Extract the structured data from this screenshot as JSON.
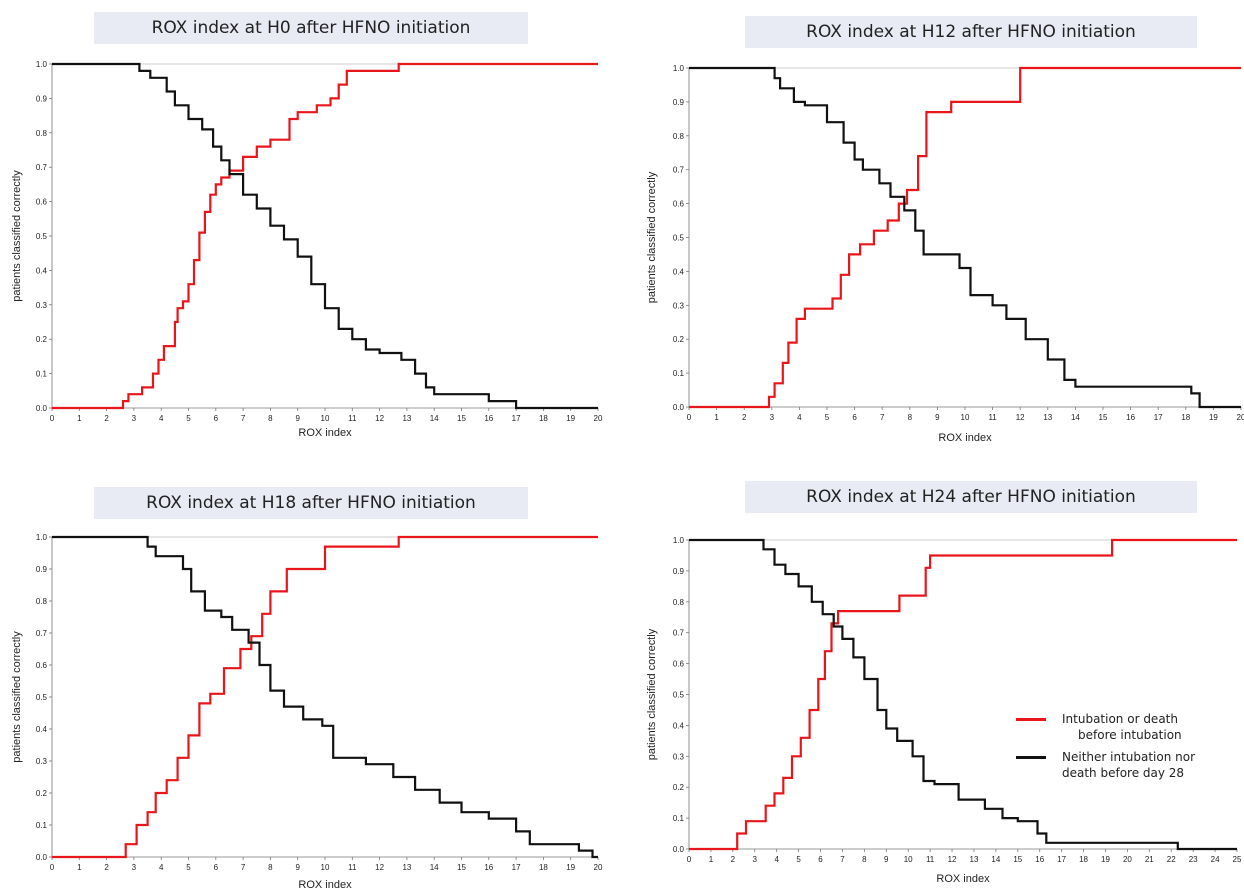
{
  "colors": {
    "intubation": "#e8161b",
    "neither": "#111111",
    "title_bg": "#e9ebf4",
    "axis": "#777777"
  },
  "legend": {
    "intubation_line1": "Intubation or death",
    "intubation_line2": "before intubation",
    "neither_line1": "Neither intubation nor",
    "neither_line2": "death before day 28"
  },
  "chart_data": [
    {
      "type": "line",
      "title": "ROX index at H0 after HFNO initiation",
      "xlabel": "ROX index",
      "ylabel": "patients classified correctly",
      "xlim": [
        0,
        20
      ],
      "ylim": [
        0,
        1
      ],
      "x_ticks": [
        "0",
        "1",
        "2",
        "3",
        "4",
        "5",
        "6",
        "7",
        "8",
        "9",
        "10",
        "11",
        "12",
        "13",
        "14",
        "15",
        "16",
        "17",
        "18",
        "19",
        "20"
      ],
      "y_ticks": [
        "0.0",
        "0.1",
        "0.2",
        "0.3",
        "0.4",
        "0.5",
        "0.6",
        "0.7",
        "0.8",
        "0.9",
        "1.0"
      ],
      "series": [
        {
          "name": "Intubation or death before intubation",
          "color_key": "intubation",
          "x": [
            0,
            2.6,
            2.8,
            3.3,
            3.7,
            3.9,
            4.1,
            4.5,
            4.6,
            4.8,
            5.0,
            5.2,
            5.4,
            5.6,
            5.8,
            6.0,
            6.2,
            6.5,
            7.0,
            7.5,
            8.0,
            8.7,
            9.0,
            9.7,
            10.2,
            10.5,
            10.8,
            12.0,
            12.7,
            20
          ],
          "y": [
            0,
            0.02,
            0.04,
            0.06,
            0.1,
            0.14,
            0.18,
            0.25,
            0.29,
            0.31,
            0.36,
            0.43,
            0.51,
            0.57,
            0.62,
            0.65,
            0.67,
            0.69,
            0.73,
            0.76,
            0.78,
            0.84,
            0.86,
            0.88,
            0.9,
            0.94,
            0.98,
            0.98,
            1.0,
            1.0
          ]
        },
        {
          "name": "Neither intubation nor death before day 28",
          "color_key": "neither",
          "x": [
            0,
            3.2,
            3.6,
            4.2,
            4.5,
            5.0,
            5.5,
            5.9,
            6.2,
            6.5,
            7.0,
            7.5,
            8.0,
            8.5,
            9.0,
            9.5,
            10.0,
            10.5,
            11.0,
            11.5,
            12.0,
            12.8,
            13.3,
            13.7,
            14.0,
            16.0,
            17.0,
            20
          ],
          "y": [
            1.0,
            0.98,
            0.96,
            0.92,
            0.88,
            0.84,
            0.81,
            0.76,
            0.72,
            0.68,
            0.62,
            0.58,
            0.53,
            0.49,
            0.44,
            0.36,
            0.29,
            0.23,
            0.2,
            0.17,
            0.16,
            0.14,
            0.1,
            0.06,
            0.04,
            0.02,
            0.0,
            0.0
          ]
        }
      ]
    },
    {
      "type": "line",
      "title": "ROX index at H12 after HFNO initiation",
      "xlabel": "ROX index",
      "ylabel": "patients classified correctly",
      "xlim": [
        0,
        20
      ],
      "ylim": [
        0,
        1
      ],
      "x_ticks": [
        "0",
        "1",
        "2",
        "3",
        "4",
        "5",
        "6",
        "7",
        "8",
        "9",
        "10",
        "11",
        "12",
        "13",
        "14",
        "15",
        "16",
        "17",
        "18",
        "19",
        "20"
      ],
      "y_ticks": [
        "0.0",
        "0.1",
        "0.2",
        "0.3",
        "0.4",
        "0.5",
        "0.6",
        "0.7",
        "0.8",
        "0.9",
        "1.0"
      ],
      "series": [
        {
          "name": "Intubation or death before intubation",
          "color_key": "intubation",
          "x": [
            0,
            2.9,
            3.1,
            3.4,
            3.6,
            3.9,
            4.2,
            5.2,
            5.5,
            5.8,
            6.2,
            6.7,
            7.2,
            7.6,
            7.9,
            8.3,
            8.6,
            9.5,
            11.8,
            12.0,
            20
          ],
          "y": [
            0,
            0.03,
            0.07,
            0.13,
            0.19,
            0.26,
            0.29,
            0.32,
            0.39,
            0.45,
            0.48,
            0.52,
            0.55,
            0.6,
            0.64,
            0.74,
            0.87,
            0.9,
            0.9,
            1.0,
            1.0
          ]
        },
        {
          "name": "Neither intubation nor death before day 28",
          "color_key": "neither",
          "x": [
            0,
            3.1,
            3.3,
            3.8,
            4.2,
            5.0,
            5.6,
            6.0,
            6.3,
            6.9,
            7.3,
            7.8,
            8.2,
            8.5,
            9.2,
            9.8,
            10.2,
            11.0,
            11.5,
            12.2,
            13.0,
            13.6,
            14.0,
            16.5,
            18.2,
            18.5,
            20
          ],
          "y": [
            1.0,
            0.97,
            0.94,
            0.9,
            0.89,
            0.84,
            0.78,
            0.73,
            0.7,
            0.66,
            0.62,
            0.58,
            0.52,
            0.45,
            0.45,
            0.41,
            0.33,
            0.3,
            0.26,
            0.2,
            0.14,
            0.08,
            0.06,
            0.06,
            0.04,
            0.0,
            0.0
          ]
        }
      ]
    },
    {
      "type": "line",
      "title": "ROX index at H18 after HFNO initiation",
      "xlabel": "ROX index",
      "ylabel": "patients classified correctly",
      "xlim": [
        0,
        20
      ],
      "ylim": [
        0,
        1
      ],
      "x_ticks": [
        "0",
        "1",
        "2",
        "3",
        "4",
        "5",
        "6",
        "7",
        "8",
        "9",
        "10",
        "11",
        "12",
        "13",
        "14",
        "15",
        "16",
        "17",
        "18",
        "19",
        "20"
      ],
      "y_ticks": [
        "0.0",
        "0.1",
        "0.2",
        "0.3",
        "0.4",
        "0.5",
        "0.6",
        "0.7",
        "0.8",
        "0.9",
        "1.0"
      ],
      "series": [
        {
          "name": "Intubation or death before intubation",
          "color_key": "intubation",
          "x": [
            0,
            2.7,
            3.1,
            3.5,
            3.8,
            4.2,
            4.6,
            5.0,
            5.4,
            5.8,
            6.3,
            6.9,
            7.3,
            7.7,
            8.0,
            8.6,
            9.0,
            10.0,
            12.7,
            20
          ],
          "y": [
            0,
            0.04,
            0.1,
            0.14,
            0.2,
            0.24,
            0.31,
            0.38,
            0.48,
            0.51,
            0.59,
            0.65,
            0.69,
            0.76,
            0.83,
            0.9,
            0.9,
            0.97,
            1.0,
            1.0
          ]
        },
        {
          "name": "Neither intubation nor death before day 28",
          "color_key": "neither",
          "x": [
            0,
            3.5,
            3.8,
            4.8,
            5.1,
            5.6,
            6.2,
            6.6,
            7.2,
            7.6,
            8.0,
            8.5,
            9.2,
            9.9,
            10.3,
            11.5,
            12.5,
            13.3,
            14.2,
            15.0,
            16.0,
            17.0,
            17.5,
            19.3,
            19.8,
            20
          ],
          "y": [
            1.0,
            0.97,
            0.94,
            0.9,
            0.83,
            0.77,
            0.75,
            0.71,
            0.67,
            0.6,
            0.52,
            0.47,
            0.43,
            0.41,
            0.31,
            0.29,
            0.25,
            0.21,
            0.17,
            0.14,
            0.12,
            0.08,
            0.04,
            0.02,
            0.0,
            0.0
          ]
        }
      ]
    },
    {
      "type": "line",
      "title": "ROX index at H24 after HFNO initiation",
      "xlabel": "ROX index",
      "ylabel": "patients classified correctly",
      "xlim": [
        0,
        25
      ],
      "ylim": [
        0,
        1
      ],
      "x_ticks": [
        "0",
        "1",
        "2",
        "3",
        "4",
        "5",
        "6",
        "7",
        "8",
        "9",
        "10",
        "11",
        "12",
        "13",
        "14",
        "15",
        "16",
        "17",
        "18",
        "19",
        "20",
        "21",
        "22",
        "23",
        "24",
        "25"
      ],
      "y_ticks": [
        "0.0",
        "0.1",
        "0.2",
        "0.3",
        "0.4",
        "0.5",
        "0.6",
        "0.7",
        "0.8",
        "0.9",
        "1.0"
      ],
      "series": [
        {
          "name": "Intubation or death before intubation",
          "color_key": "intubation",
          "x": [
            0,
            2.2,
            2.6,
            3.5,
            3.9,
            4.3,
            4.7,
            5.1,
            5.5,
            5.9,
            6.2,
            6.5,
            6.8,
            7.0,
            9.6,
            10.8,
            11.0,
            19.3,
            25
          ],
          "y": [
            0,
            0.05,
            0.09,
            0.14,
            0.18,
            0.23,
            0.3,
            0.36,
            0.45,
            0.55,
            0.64,
            0.73,
            0.77,
            0.77,
            0.82,
            0.91,
            0.95,
            1.0,
            1.0
          ]
        },
        {
          "name": "Neither intubation nor death before day 28",
          "color_key": "neither",
          "x": [
            0,
            3.4,
            3.9,
            4.4,
            5.0,
            5.6,
            6.1,
            6.6,
            7.0,
            7.5,
            8.0,
            8.6,
            9.0,
            9.5,
            10.2,
            10.7,
            11.2,
            12.3,
            13.5,
            14.3,
            15.0,
            15.9,
            16.3,
            22.3,
            25
          ],
          "y": [
            1.0,
            0.97,
            0.92,
            0.89,
            0.85,
            0.8,
            0.76,
            0.72,
            0.68,
            0.62,
            0.55,
            0.45,
            0.39,
            0.35,
            0.3,
            0.22,
            0.21,
            0.16,
            0.13,
            0.1,
            0.09,
            0.05,
            0.02,
            0.0,
            0.0
          ]
        }
      ]
    }
  ]
}
